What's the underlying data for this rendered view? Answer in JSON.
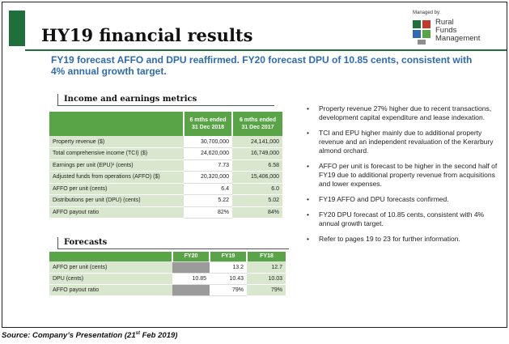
{
  "header": {
    "title": "HY19 financial results",
    "subtitle": "FY19 forecast AFFO and DPU reaffirmed. FY20 forecast DPU of 10.85 cents, consistent with 4% annual growth target.",
    "logo": {
      "managed_by": "Managed by:",
      "line1": "Rural",
      "line2": "Funds",
      "line3": "Management"
    }
  },
  "metrics": {
    "title": "Income and earnings metrics",
    "col1": "6 mths ended 31 Dec 2018",
    "col2": "6 mths ended 31 Dec 2017",
    "rows": [
      {
        "label": "Property revenue ($)",
        "v1": "30,700,000",
        "v2": "24,141,000"
      },
      {
        "label": "Total comprehensive income (TCI) ($)",
        "v1": "24,620,000",
        "v2": "16,749,000"
      },
      {
        "label": "Earnings per unit (EPU)¹ (cents)",
        "v1": "7.73",
        "v2": "6.58"
      },
      {
        "label": "Adjusted funds from operations (AFFO) ($)",
        "v1": "20,320,000",
        "v2": "15,406,000"
      },
      {
        "label": "AFFO per unit (cents)",
        "v1": "6.4",
        "v2": "6.0"
      },
      {
        "label": "Distributions per unit (DPU) (cents)",
        "v1": "5.22",
        "v2": "5.02"
      },
      {
        "label": "AFFO payout ratio",
        "v1": "82%",
        "v2": "84%"
      }
    ]
  },
  "forecasts": {
    "title": "Forecasts",
    "cols": [
      "FY20",
      "FY19",
      "FY18"
    ],
    "rows": [
      {
        "label": "AFFO per unit (cents)",
        "fy20": "",
        "fy19": "13.2",
        "fy18": "12.7"
      },
      {
        "label": "DPU (cents)",
        "fy20": "10.85",
        "fy19": "10.43",
        "fy18": "10.03"
      },
      {
        "label": "AFFO payout ratio",
        "fy20": "",
        "fy19": "79%",
        "fy18": "79%"
      }
    ]
  },
  "bullets": [
    "Property revenue 27% higher due to recent transactions, development capital expenditure and lease indexation.",
    "TCI and EPU higher mainly due to additional property revenue and an independent revaluation of the Kerarbury almond orchard.",
    "AFFO per unit is forecast to be higher in the second half of FY19 due to additional property revenue from acquisitions and lower expenses.",
    "FY19 AFFO and DPU forecasts confirmed.",
    "FY20 DPU forecast of 10.85 cents, consistent with 4% annual growth target.",
    "Refer to pages 19 to 23 for further information."
  ],
  "source": {
    "text_before": "Source: Company’s Presentation (21",
    "sup": "st",
    "text_after": " Feb 2019)"
  },
  "colors": {
    "accent_green": "#5aa448",
    "light_green": "#d9e7cf",
    "dark_green": "#1e6f3a",
    "blue_text": "#2f6bb0",
    "grey_cell": "#9b9b9b"
  }
}
